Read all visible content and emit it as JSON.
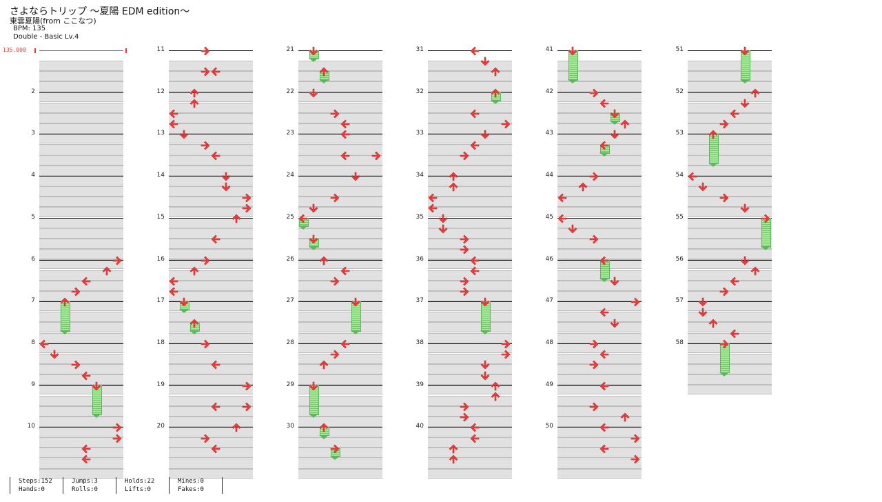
{
  "header": {
    "title": "さよならトリップ ～夏陽 EDM edition～",
    "artist": "東雲夏陽(from ここなつ)",
    "bpm": "BPM: 135",
    "difficulty": "Double - Basic Lv.4"
  },
  "bpm_marker": "135.000",
  "measures": [
    "2",
    "3",
    "4",
    "5",
    "6",
    "7",
    "8",
    "9",
    "10",
    "11",
    "12",
    "13",
    "14",
    "15",
    "16",
    "17",
    "18",
    "19",
    "20",
    "21",
    "22",
    "23",
    "24",
    "25",
    "26",
    "27",
    "28",
    "29",
    "30",
    "31",
    "32",
    "33",
    "34",
    "35",
    "36",
    "37",
    "38",
    "39",
    "40",
    "41",
    "42",
    "43",
    "44",
    "45",
    "46",
    "47",
    "48",
    "49",
    "50",
    "51",
    "52",
    "53",
    "54",
    "55",
    "56",
    "57",
    "58"
  ],
  "stats": [
    {
      "a": "Steps:152",
      "b": "Hands:0"
    },
    {
      "a": "Jumps:3",
      "b": "Rolls:0"
    },
    {
      "a": "Holds:22",
      "b": "Lifts:0"
    },
    {
      "a": "Mines:0",
      "b": "Fakes:0"
    },
    {
      "a": "",
      "b": ""
    }
  ],
  "colors": {
    "arrow": "#f03c3c",
    "hold": "#7ed36f",
    "band": "#e1e1e1",
    "bpm": "#e53935"
  }
}
